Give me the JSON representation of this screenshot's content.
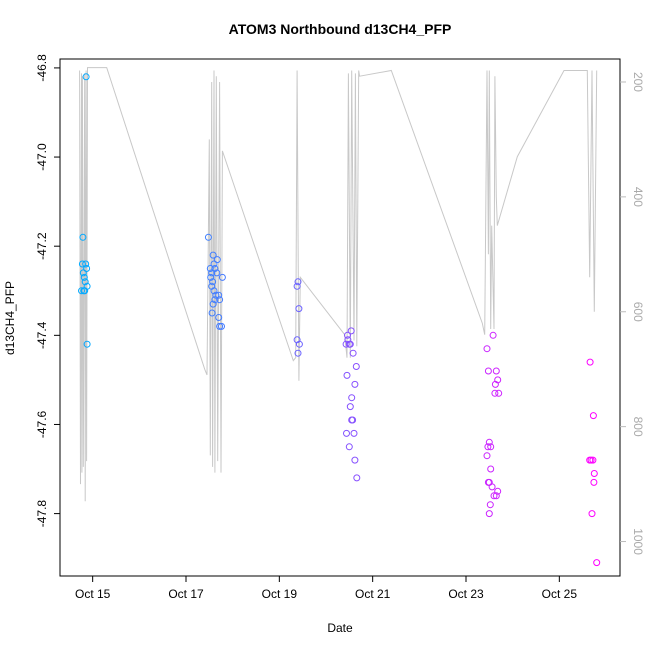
{
  "chart_data": {
    "type": "scatter",
    "title": "ATOM3 Northbound d13CH4_PFP",
    "xlabel": "Date",
    "ylabel": "d13CH4_PFP",
    "x_ticks": [
      {
        "x": 15,
        "label": "Oct 15"
      },
      {
        "x": 17,
        "label": "Oct 17"
      },
      {
        "x": 19,
        "label": "Oct 19"
      },
      {
        "x": 21,
        "label": "Oct 21"
      },
      {
        "x": 23,
        "label": "Oct 23"
      },
      {
        "x": 25,
        "label": "Oct 25"
      }
    ],
    "y_ticks": [
      -46.8,
      -47.0,
      -47.2,
      -47.4,
      -47.6,
      -47.8
    ],
    "y_tick_labels": [
      "-46.8",
      "-47.0",
      "-47.2",
      "-47.4",
      "-47.6",
      "-47.8"
    ],
    "xlim": [
      14.3,
      26.3
    ],
    "ylim": [
      -47.94,
      -46.78
    ],
    "secondary_axis": {
      "ticks": [
        200,
        400,
        600,
        800,
        1000
      ],
      "tick_labels": [
        "200",
        "400",
        "600",
        "800",
        "1000"
      ],
      "lim": [
        1060,
        160
      ],
      "color": "#bbbbbb"
    },
    "line_color": "#c8c8c8",
    "point_color_start": "#00aaff",
    "point_color_end": "#ff00ff",
    "line_series": [
      [
        14.72,
        180
      ],
      [
        14.74,
        900
      ],
      [
        14.76,
        185
      ],
      [
        14.77,
        880
      ],
      [
        14.78,
        190
      ],
      [
        14.8,
        870
      ],
      [
        14.83,
        185
      ],
      [
        14.84,
        930
      ],
      [
        14.86,
        180
      ],
      [
        14.87,
        860
      ],
      [
        14.89,
        175
      ],
      [
        15.3,
        175
      ],
      [
        17.4,
        700
      ],
      [
        17.45,
        710
      ],
      [
        17.5,
        300
      ],
      [
        17.52,
        850
      ],
      [
        17.55,
        200
      ],
      [
        17.57,
        870
      ],
      [
        17.6,
        180
      ],
      [
        17.62,
        880
      ],
      [
        17.65,
        190
      ],
      [
        17.68,
        860
      ],
      [
        17.72,
        200
      ],
      [
        17.75,
        880
      ],
      [
        17.78,
        320
      ],
      [
        19.3,
        685
      ],
      [
        19.35,
        680
      ],
      [
        19.38,
        180
      ],
      [
        19.42,
        720
      ],
      [
        19.45,
        540
      ],
      [
        20.4,
        640
      ],
      [
        20.45,
        680
      ],
      [
        20.48,
        185
      ],
      [
        20.52,
        680
      ],
      [
        20.55,
        180
      ],
      [
        20.6,
        650
      ],
      [
        20.63,
        185
      ],
      [
        20.66,
        660
      ],
      [
        20.7,
        180
      ],
      [
        20.72,
        190
      ],
      [
        21.4,
        180
      ],
      [
        23.35,
        620
      ],
      [
        23.4,
        640
      ],
      [
        23.45,
        180
      ],
      [
        23.48,
        500
      ],
      [
        23.5,
        180
      ],
      [
        23.53,
        630
      ],
      [
        23.55,
        450
      ],
      [
        23.6,
        630
      ],
      [
        23.62,
        190
      ],
      [
        23.65,
        400
      ],
      [
        23.67,
        450
      ],
      [
        24.1,
        330
      ],
      [
        25.1,
        180
      ],
      [
        25.6,
        180
      ],
      [
        25.65,
        540
      ],
      [
        25.7,
        180
      ],
      [
        25.75,
        600
      ],
      [
        25.8,
        180
      ]
    ],
    "points": [
      [
        14.86,
        -46.82
      ],
      [
        14.79,
        -47.18
      ],
      [
        14.78,
        -47.24
      ],
      [
        14.85,
        -47.24
      ],
      [
        14.87,
        -47.25
      ],
      [
        14.8,
        -47.26
      ],
      [
        14.82,
        -47.27
      ],
      [
        14.84,
        -47.28
      ],
      [
        14.88,
        -47.29
      ],
      [
        14.81,
        -47.3
      ],
      [
        14.76,
        -47.3
      ],
      [
        14.83,
        -47.3
      ],
      [
        14.88,
        -47.42
      ],
      [
        17.48,
        -47.18
      ],
      [
        17.52,
        -47.25
      ],
      [
        17.55,
        -47.26
      ],
      [
        17.58,
        -47.22
      ],
      [
        17.6,
        -47.24
      ],
      [
        17.53,
        -47.27
      ],
      [
        17.62,
        -47.25
      ],
      [
        17.67,
        -47.23
      ],
      [
        17.66,
        -47.26
      ],
      [
        17.78,
        -47.27
      ],
      [
        17.57,
        -47.28
      ],
      [
        17.55,
        -47.29
      ],
      [
        17.64,
        -47.31
      ],
      [
        17.6,
        -47.3
      ],
      [
        17.62,
        -47.32
      ],
      [
        17.7,
        -47.31
      ],
      [
        17.58,
        -47.33
      ],
      [
        17.72,
        -47.32
      ],
      [
        17.56,
        -47.35
      ],
      [
        17.7,
        -47.36
      ],
      [
        17.72,
        -47.38
      ],
      [
        17.76,
        -47.38
      ],
      [
        19.4,
        -47.28
      ],
      [
        19.38,
        -47.29
      ],
      [
        19.42,
        -47.34
      ],
      [
        19.38,
        -47.41
      ],
      [
        19.43,
        -47.42
      ],
      [
        19.4,
        -47.44
      ],
      [
        20.46,
        -47.4
      ],
      [
        20.54,
        -47.39
      ],
      [
        20.43,
        -47.42
      ],
      [
        20.5,
        -47.42
      ],
      [
        20.47,
        -47.41
      ],
      [
        20.52,
        -47.42
      ],
      [
        20.58,
        -47.44
      ],
      [
        20.65,
        -47.47
      ],
      [
        20.45,
        -47.49
      ],
      [
        20.62,
        -47.51
      ],
      [
        20.55,
        -47.54
      ],
      [
        20.52,
        -47.56
      ],
      [
        20.57,
        -47.59
      ],
      [
        20.55,
        -47.59
      ],
      [
        20.6,
        -47.62
      ],
      [
        20.44,
        -47.62
      ],
      [
        20.5,
        -47.65
      ],
      [
        20.62,
        -47.68
      ],
      [
        20.66,
        -47.72
      ],
      [
        23.45,
        -47.43
      ],
      [
        23.58,
        -47.4
      ],
      [
        23.48,
        -47.48
      ],
      [
        23.65,
        -47.48
      ],
      [
        23.68,
        -47.5
      ],
      [
        23.63,
        -47.51
      ],
      [
        23.62,
        -47.53
      ],
      [
        23.7,
        -47.53
      ],
      [
        23.5,
        -47.64
      ],
      [
        23.47,
        -47.65
      ],
      [
        23.53,
        -47.65
      ],
      [
        23.45,
        -47.67
      ],
      [
        23.53,
        -47.7
      ],
      [
        23.48,
        -47.73
      ],
      [
        23.5,
        -47.73
      ],
      [
        23.56,
        -47.74
      ],
      [
        23.68,
        -47.75
      ],
      [
        23.65,
        -47.76
      ],
      [
        23.6,
        -47.76
      ],
      [
        23.52,
        -47.78
      ],
      [
        23.5,
        -47.8
      ],
      [
        25.66,
        -47.46
      ],
      [
        25.73,
        -47.58
      ],
      [
        25.65,
        -47.68
      ],
      [
        25.68,
        -47.68
      ],
      [
        25.72,
        -47.68
      ],
      [
        25.75,
        -47.71
      ],
      [
        25.74,
        -47.73
      ],
      [
        25.7,
        -47.8
      ],
      [
        25.8,
        -47.91
      ]
    ]
  }
}
